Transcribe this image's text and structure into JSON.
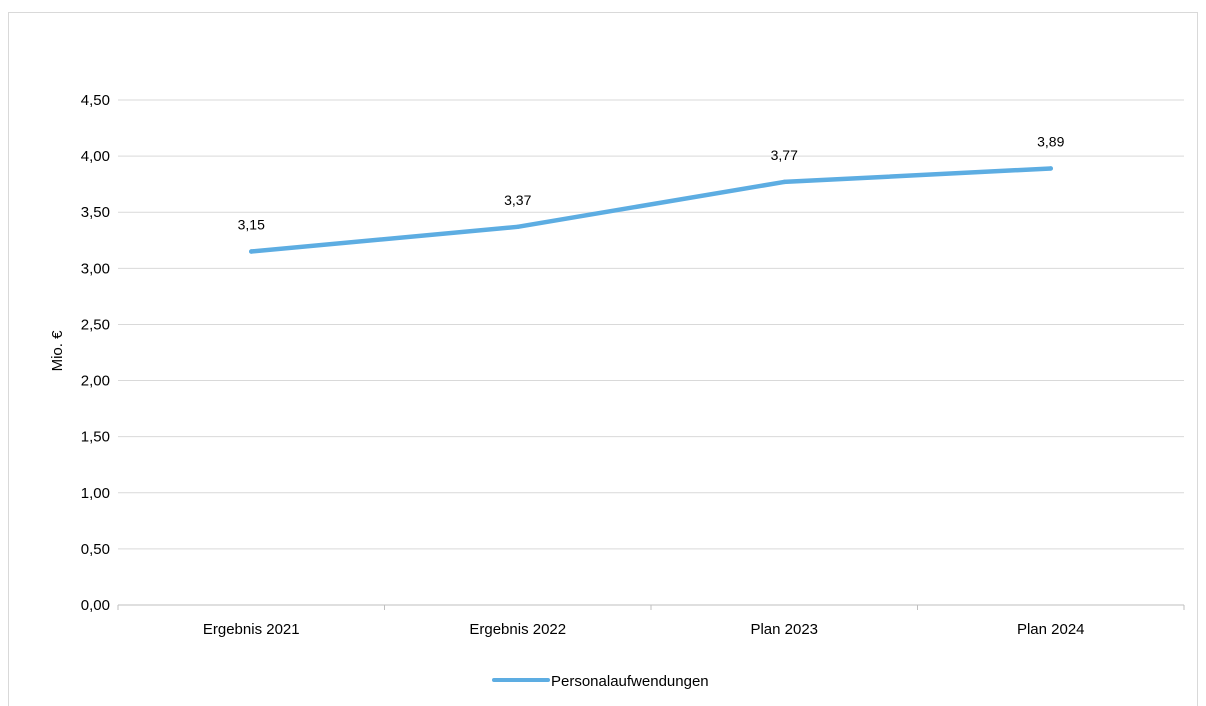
{
  "chart_data": {
    "type": "line",
    "title": "",
    "xlabel": "",
    "ylabel": "Mio. €",
    "categories": [
      "Ergebnis 2021",
      "Ergebnis 2022",
      "Plan 2023",
      "Plan 2024"
    ],
    "y_ticks": [
      "0,00",
      "0,50",
      "1,00",
      "1,50",
      "2,00",
      "2,50",
      "3,00",
      "3,50",
      "4,00",
      "4,50"
    ],
    "ylim": [
      0,
      4.5
    ],
    "grid": true,
    "legend_position": "bottom",
    "series": [
      {
        "name": "Personalaufwendungen",
        "values": [
          3.15,
          3.37,
          3.77,
          3.89
        ],
        "labels": [
          "3,15",
          "3,37",
          "3,77",
          "3,89"
        ],
        "color": "#5dade2"
      }
    ]
  }
}
